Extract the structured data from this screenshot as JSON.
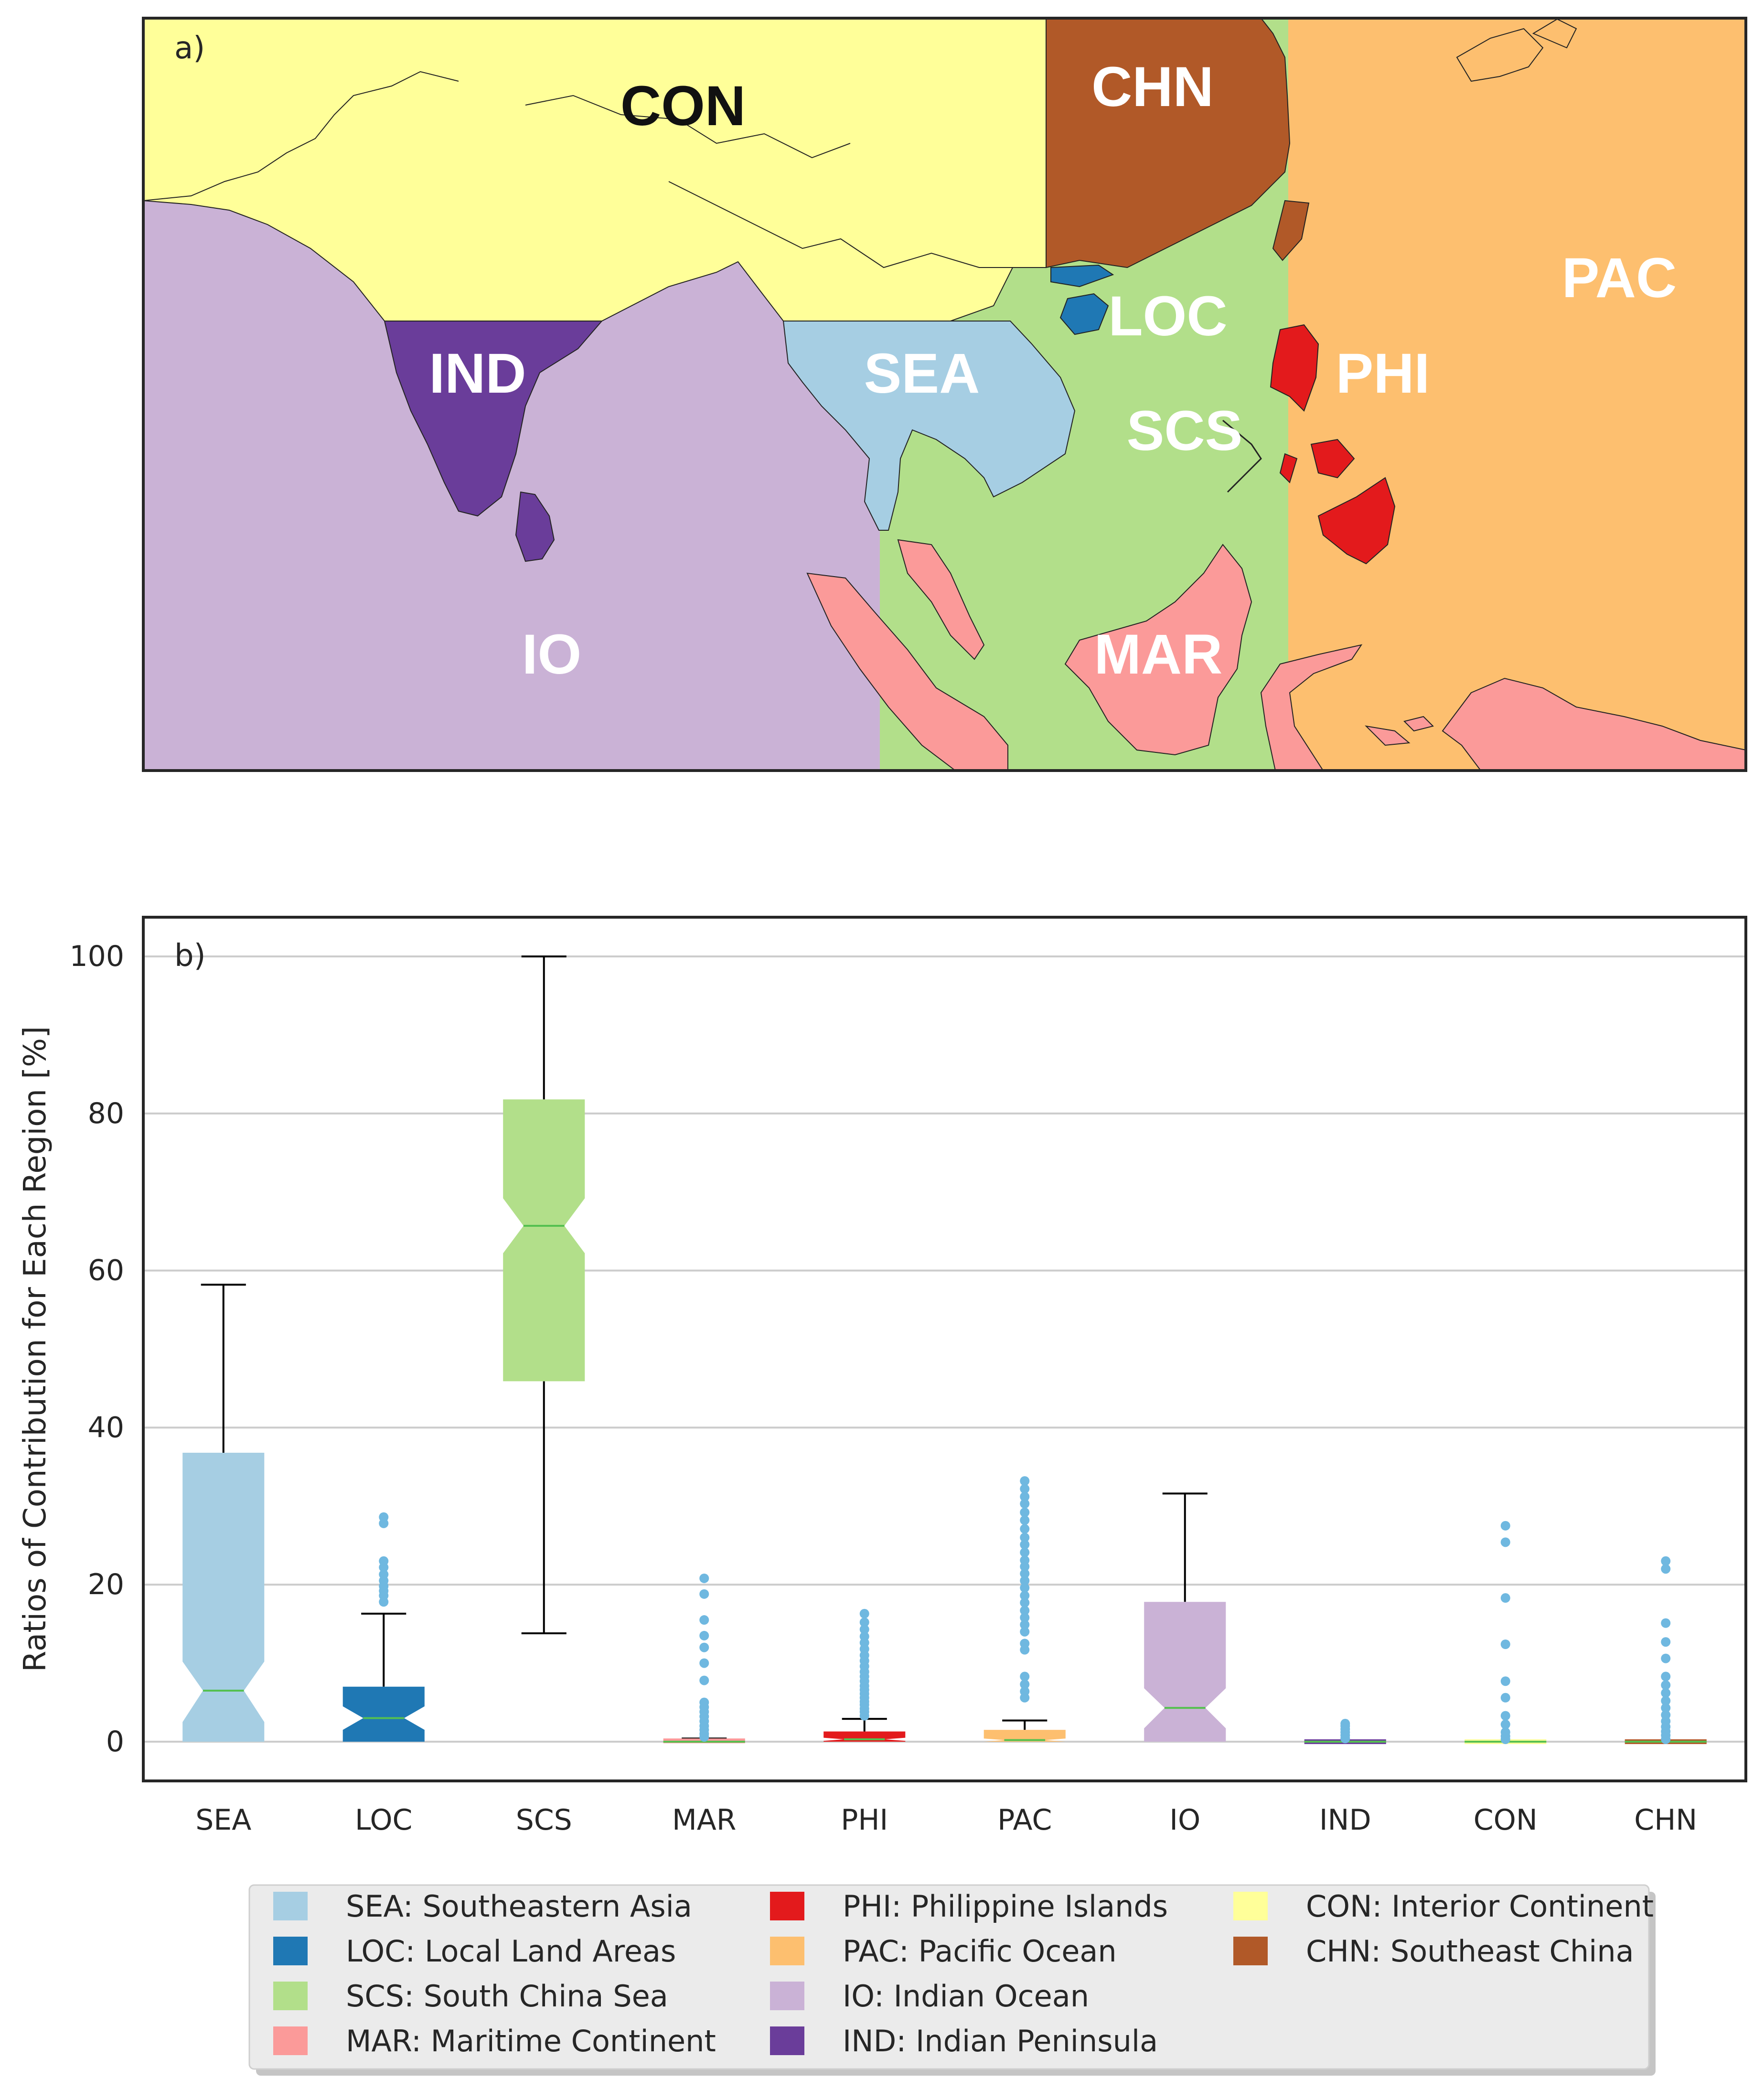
{
  "map_panel": {
    "label": "a)",
    "regions": [
      {
        "code": "CON",
        "color": "#ffff99",
        "label_color": "#111111"
      },
      {
        "code": "CHN",
        "color": "#b15928",
        "label_color": "#ffffff"
      },
      {
        "code": "PAC",
        "color": "#fdbf6f",
        "label_color": "#ffffff"
      },
      {
        "code": "LOC",
        "color": "#1f78b4",
        "label_color": "#ffffff"
      },
      {
        "code": "SEA",
        "color": "#a6cee3",
        "label_color": "#ffffff"
      },
      {
        "code": "IND",
        "color": "#6a3d9a",
        "label_color": "#ffffff"
      },
      {
        "code": "PHI",
        "color": "#e31a1c",
        "label_color": "#ffffff"
      },
      {
        "code": "SCS",
        "color": "#b2df8a",
        "label_color": "#ffffff"
      },
      {
        "code": "IO",
        "color": "#cab2d6",
        "label_color": "#ffffff"
      },
      {
        "code": "MAR",
        "color": "#fb9a99",
        "label_color": "#ffffff"
      }
    ]
  },
  "chart_data": {
    "type": "boxplot",
    "panel_label": "b)",
    "ylabel": "Ratios of Contribution for Each Region [%]",
    "xlabel": "",
    "ylim": [
      -5,
      105
    ],
    "yticks": [
      0,
      20,
      40,
      60,
      80,
      100
    ],
    "grid": "horizontal",
    "categories": [
      "SEA",
      "LOC",
      "SCS",
      "MAR",
      "PHI",
      "PAC",
      "IO",
      "IND",
      "CON",
      "CHN"
    ],
    "boxes": [
      {
        "name": "SEA",
        "color": "#a6cee3",
        "whislo": 0,
        "q1": 0,
        "med": 6.5,
        "q3": 36.8,
        "whishi": 58.2,
        "notch_lo": 2.5,
        "notch_hi": 10.2,
        "fliers": []
      },
      {
        "name": "LOC",
        "color": "#1f78b4",
        "whislo": 0,
        "q1": 0,
        "med": 3.0,
        "q3": 7.0,
        "whishi": 16.3,
        "notch_lo": 1.5,
        "notch_hi": 4.5,
        "fliers": [
          17.8,
          18.6,
          19.2,
          19.8,
          20.5,
          21.3,
          22.2,
          23.0,
          27.8,
          28.6
        ]
      },
      {
        "name": "SCS",
        "color": "#b2df8a",
        "whislo": 13.8,
        "q1": 45.9,
        "med": 65.7,
        "q3": 81.8,
        "whishi": 100,
        "notch_lo": 62.2,
        "notch_hi": 69.2,
        "fliers": []
      },
      {
        "name": "MAR",
        "color": "#fb9a99",
        "whislo": 0,
        "q1": 0,
        "med": 0,
        "q3": 0.2,
        "whishi": 0.4,
        "notch_lo": 0,
        "notch_hi": 0.1,
        "fliers": [
          0.6,
          1.0,
          1.5,
          2.0,
          2.6,
          3.2,
          3.8,
          4.4,
          5.0,
          7.8,
          10.0,
          12.0,
          13.5,
          15.5,
          18.8,
          20.8
        ]
      },
      {
        "name": "PHI",
        "color": "#e31a1c",
        "whislo": 0,
        "q1": 0,
        "med": 0.3,
        "q3": 1.3,
        "whishi": 2.9,
        "notch_lo": 0.1,
        "notch_hi": 0.5,
        "fliers": [
          3.3,
          3.8,
          4.2,
          4.7,
          5.1,
          5.6,
          6.1,
          6.6,
          7.1,
          7.7,
          8.3,
          8.9,
          9.6,
          10.3,
          11.0,
          11.8,
          12.6,
          13.4,
          14.3,
          15.2,
          16.3
        ]
      },
      {
        "name": "PAC",
        "color": "#fdbf6f",
        "whislo": 0,
        "q1": 0,
        "med": 0.2,
        "q3": 1.5,
        "whishi": 2.7,
        "notch_lo": 0,
        "notch_hi": 0.4,
        "fliers": [
          5.6,
          6.4,
          7.3,
          8.3,
          11.7,
          12.5,
          14.0,
          14.9,
          15.8,
          16.7,
          17.7,
          18.6,
          19.6,
          20.5,
          21.4,
          22.3,
          23.1,
          24.1,
          25.1,
          26.0,
          27.1,
          28.2,
          29.2,
          30.3,
          31.2,
          32.2,
          33.2
        ]
      },
      {
        "name": "IO",
        "color": "#cab2d6",
        "whislo": 0,
        "q1": 0,
        "med": 4.3,
        "q3": 17.8,
        "whishi": 31.6,
        "notch_lo": 1.7,
        "notch_hi": 6.8,
        "fliers": []
      },
      {
        "name": "IND",
        "color": "#6a3d9a",
        "whislo": 0,
        "q1": 0,
        "med": 0,
        "q3": 0,
        "whishi": 0,
        "notch_lo": 0,
        "notch_hi": 0,
        "fliers": [
          0.4,
          0.8,
          1.2,
          1.6,
          2.0,
          2.3
        ]
      },
      {
        "name": "CON",
        "color": "#ffff99",
        "whislo": 0,
        "q1": 0,
        "med": 0,
        "q3": 0,
        "whishi": 0,
        "notch_lo": 0,
        "notch_hi": 0,
        "fliers": [
          0.3,
          0.7,
          1.2,
          2.2,
          3.3,
          5.6,
          7.7,
          12.4,
          18.3,
          25.4,
          27.5
        ]
      },
      {
        "name": "CHN",
        "color": "#b15928",
        "whislo": 0,
        "q1": 0,
        "med": 0,
        "q3": 0,
        "whishi": 0,
        "notch_lo": 0,
        "notch_hi": 0,
        "fliers": [
          0.3,
          0.8,
          1.3,
          1.9,
          2.6,
          3.4,
          4.3,
          5.2,
          6.2,
          7.2,
          8.3,
          10.6,
          12.7,
          15.1,
          22.0,
          23.0
        ]
      }
    ],
    "legend": {
      "placement": "bottom-center",
      "entries": [
        {
          "text": "SEA: Southeastern Asia",
          "color": "#a6cee3"
        },
        {
          "text": "LOC: Local Land Areas",
          "color": "#1f78b4"
        },
        {
          "text": "SCS: South China Sea",
          "color": "#b2df8a"
        },
        {
          "text": "MAR: Maritime Continent",
          "color": "#fb9a99"
        },
        {
          "text": "PHI: Philippine Islands",
          "color": "#e31a1c"
        },
        {
          "text": "PAC: Pacific Ocean",
          "color": "#fdbf6f"
        },
        {
          "text": "IO: Indian Ocean",
          "color": "#cab2d6"
        },
        {
          "text": "IND: Indian Peninsula",
          "color": "#6a3d9a"
        },
        {
          "text": "CON: Interior Continent",
          "color": "#ffff99"
        },
        {
          "text": "CHN: Southeast China",
          "color": "#b15928"
        }
      ]
    }
  }
}
